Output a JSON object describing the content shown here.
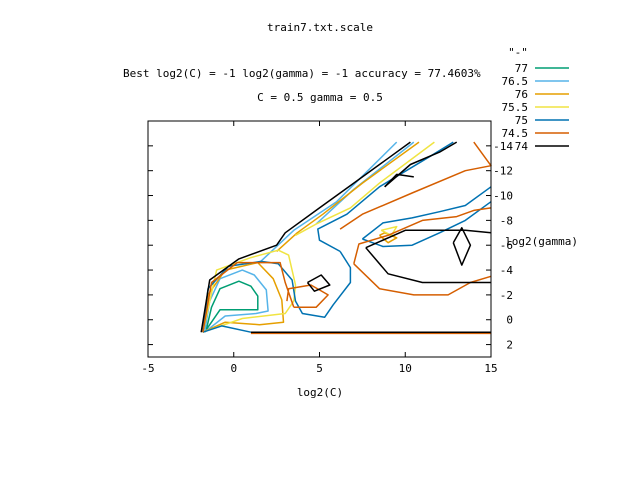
{
  "chart_data": {
    "type": "contour",
    "title": "train7.txt.scale",
    "subtitle_line1": "Best log2(C) = -1  log2(gamma) = -1  accuracy = 77.4603%",
    "subtitle_line2": "C = 0.5  gamma = 0.5",
    "xlabel": "log2(C)",
    "ylabel": "log2(gamma)",
    "xlim": [
      -5,
      15
    ],
    "ylim": [
      -16,
      3
    ],
    "y_reversed": true,
    "x_ticks": [
      -5,
      0,
      5,
      10,
      15
    ],
    "x_tick_labels": [
      "-5",
      "0",
      "5",
      "10",
      "15"
    ],
    "y_ticks": [
      -14,
      -12,
      -10,
      -8,
      -6,
      -4,
      -2,
      0,
      2
    ],
    "y_tick_labels": [
      "-14",
      "-12",
      "-10",
      "-8",
      "-6",
      "-4",
      "-2",
      "0",
      "2"
    ],
    "legend": {
      "title": "\"-\"",
      "placement": "top-right"
    },
    "series": [
      {
        "name": "77",
        "color": "#009e73",
        "paths": [
          [
            [
              -1.6,
              0.8
            ],
            [
              -1.3,
              -1
            ],
            [
              -0.8,
              -2.5
            ],
            [
              0.3,
              -3.1
            ],
            [
              1.0,
              -2.7
            ],
            [
              1.4,
              -1.9
            ],
            [
              1.4,
              -0.8
            ],
            [
              0.4,
              -0.8
            ],
            [
              -0.8,
              -0.8
            ],
            [
              -1.6,
              0.8
            ]
          ]
        ]
      },
      {
        "name": "76.5",
        "color": "#56b4e9",
        "paths": [
          [
            [
              -1.7,
              1.0
            ],
            [
              -1.4,
              -1.5
            ],
            [
              -0.8,
              -3.3
            ],
            [
              0.5,
              -4.0
            ],
            [
              1.2,
              -3.6
            ],
            [
              1.9,
              -2.4
            ],
            [
              2.0,
              -0.7
            ],
            [
              1.3,
              -0.5
            ],
            [
              -0.5,
              -0.3
            ],
            [
              -1.7,
              1.0
            ]
          ],
          [
            [
              1.5,
              -4.6
            ],
            [
              3.5,
              -7.2
            ],
            [
              6.0,
              -9.5
            ],
            [
              9.5,
              -14.3
            ]
          ],
          [
            [
              4.8,
              -7.7
            ],
            [
              7.0,
              -10.5
            ],
            [
              10.5,
              -14.3
            ]
          ]
        ]
      },
      {
        "name": "76",
        "color": "#e69f00",
        "paths": [
          [
            [
              -1.8,
              1.0
            ],
            [
              -1.5,
              -2.0
            ],
            [
              -0.5,
              -4.0
            ],
            [
              1.4,
              -4.6
            ],
            [
              2.3,
              -3.3
            ],
            [
              2.8,
              -1.6
            ],
            [
              2.9,
              0.2
            ],
            [
              1.5,
              0.4
            ],
            [
              -0.5,
              0.2
            ],
            [
              -1.8,
              1.0
            ]
          ],
          [
            [
              2.5,
              -5.5
            ],
            [
              3.7,
              -7.0
            ],
            [
              5.2,
              -8.5
            ],
            [
              7.5,
              -11.0
            ],
            [
              10.8,
              -14.3
            ]
          ],
          [
            [
              8.5,
              -6.8
            ],
            [
              9.0,
              -6.2
            ],
            [
              9.5,
              -6.6
            ],
            [
              8.8,
              -7.0
            ],
            [
              8.5,
              -6.8
            ]
          ]
        ]
      },
      {
        "name": "75.5",
        "color": "#f0e442",
        "paths": [
          [
            [
              -1.8,
              1.0
            ],
            [
              -1.0,
              -4.0
            ],
            [
              1.0,
              -5.0
            ],
            [
              2.6,
              -5.6
            ],
            [
              3.2,
              -5.2
            ],
            [
              3.6,
              -2.8
            ],
            [
              3.5,
              -1.5
            ]
          ],
          [
            [
              3.5,
              -1.5
            ],
            [
              3.0,
              -0.5
            ],
            [
              0.5,
              -0.1
            ],
            [
              -1.8,
              1.0
            ]
          ],
          [
            [
              3.6,
              -6.8
            ],
            [
              4.8,
              -7.7
            ],
            [
              6.8,
              -9.0
            ],
            [
              8.5,
              -11.0
            ],
            [
              11.7,
              -14.3
            ]
          ],
          [
            [
              8.6,
              -7.2
            ],
            [
              9.2,
              -6.8
            ],
            [
              9.5,
              -7.5
            ],
            [
              8.6,
              -7.2
            ]
          ]
        ]
      },
      {
        "name": "75",
        "color": "#0072b2",
        "paths": [
          [
            [
              -1.8,
              1.0
            ],
            [
              -1.5,
              -2.5
            ],
            [
              -0.3,
              -4.3
            ],
            [
              1.6,
              -4.7
            ],
            [
              2.6,
              -4.5
            ],
            [
              3.4,
              -3.2
            ],
            [
              3.6,
              -1.5
            ],
            [
              4.0,
              -0.5
            ],
            [
              5.3,
              -0.2
            ],
            [
              5.8,
              -1.2
            ],
            [
              6.8,
              -3.0
            ],
            [
              6.8,
              -4.2
            ],
            [
              6.2,
              -5.5
            ]
          ],
          [
            [
              6.2,
              -5.5
            ],
            [
              5.0,
              -6.4
            ],
            [
              4.9,
              -7.3
            ],
            [
              6.6,
              -8.5
            ],
            [
              8.5,
              -10.7
            ],
            [
              11.5,
              -13.2
            ],
            [
              12.8,
              -14.3
            ]
          ],
          [
            [
              7.5,
              -6.5
            ],
            [
              8.7,
              -7.8
            ],
            [
              10.4,
              -8.2
            ],
            [
              12.0,
              -8.7
            ],
            [
              13.5,
              -9.2
            ],
            [
              15.0,
              -10.7
            ]
          ],
          [
            [
              7.5,
              -6.5
            ],
            [
              8.7,
              -5.9
            ],
            [
              10.4,
              -6.0
            ],
            [
              12.0,
              -7.0
            ],
            [
              13.5,
              -8.0
            ],
            [
              15.0,
              -9.5
            ]
          ],
          [
            [
              1.0,
              1.0
            ],
            [
              -0.7,
              0.5
            ],
            [
              -1.8,
              1.0
            ]
          ]
        ]
      },
      {
        "name": "74.5",
        "color": "#d55e00",
        "paths": [
          [
            [
              -1.8,
              1.0
            ],
            [
              -1.3,
              -3.0
            ],
            [
              0.2,
              -4.6
            ],
            [
              2.7,
              -4.6
            ],
            [
              3.0,
              -3.0
            ],
            [
              3.5,
              -1.0
            ]
          ],
          [
            [
              3.5,
              -1.0
            ],
            [
              4.8,
              -1.0
            ],
            [
              5.5,
              -2.0
            ],
            [
              4.5,
              -2.8
            ],
            [
              3.2,
              -2.5
            ],
            [
              3.1,
              -1.5
            ]
          ],
          [
            [
              7.0,
              -4.5
            ],
            [
              7.3,
              -6.1
            ],
            [
              9.0,
              -6.8
            ],
            [
              11.0,
              -8.0
            ],
            [
              13.0,
              -8.3
            ],
            [
              14.0,
              -8.8
            ],
            [
              15.0,
              -9.0
            ]
          ],
          [
            [
              7.0,
              -4.5
            ],
            [
              8.5,
              -2.5
            ],
            [
              10.5,
              -2.0
            ],
            [
              12.5,
              -2.0
            ],
            [
              13.8,
              -3.0
            ],
            [
              15.0,
              -3.5
            ]
          ],
          [
            [
              6.2,
              -7.3
            ],
            [
              7.5,
              -8.5
            ],
            [
              10.4,
              -10.2
            ],
            [
              13.5,
              -12.0
            ],
            [
              15.0,
              -12.4
            ],
            [
              14.0,
              -14.3
            ]
          ],
          [
            [
              1.0,
              1.1
            ],
            [
              15.0,
              1.1
            ]
          ]
        ]
      },
      {
        "name": "74",
        "color": "#000000",
        "paths": [
          [
            [
              -1.9,
              1.0
            ],
            [
              -1.4,
              -3.2
            ],
            [
              0.3,
              -4.9
            ],
            [
              2.5,
              -6.0
            ],
            [
              3.0,
              -7.0
            ],
            [
              5.0,
              -9.0
            ],
            [
              7.0,
              -11.0
            ],
            [
              9.0,
              -13.0
            ],
            [
              10.3,
              -14.3
            ]
          ],
          [
            [
              4.3,
              -3.0
            ],
            [
              5.1,
              -3.6
            ],
            [
              5.6,
              -2.8
            ],
            [
              4.7,
              -2.3
            ],
            [
              4.3,
              -3.0
            ]
          ],
          [
            [
              7.7,
              -5.8
            ],
            [
              10.0,
              -7.2
            ],
            [
              13.5,
              -7.2
            ],
            [
              15.0,
              -7.0
            ]
          ],
          [
            [
              7.7,
              -5.8
            ],
            [
              9.0,
              -3.7
            ],
            [
              11.0,
              -3.0
            ],
            [
              13.0,
              -3.0
            ],
            [
              15.0,
              -3.0
            ]
          ],
          [
            [
              12.8,
              -6.2
            ],
            [
              13.3,
              -7.4
            ],
            [
              13.8,
              -6.0
            ],
            [
              13.3,
              -4.4
            ],
            [
              12.8,
              -6.2
            ]
          ],
          [
            [
              8.8,
              -10.7
            ],
            [
              10.3,
              -12.5
            ],
            [
              12.0,
              -13.5
            ],
            [
              13.0,
              -14.3
            ]
          ],
          [
            [
              8.8,
              -10.7
            ],
            [
              9.5,
              -11.7
            ],
            [
              10.5,
              -11.5
            ]
          ],
          [
            [
              1.0,
              1.0
            ],
            [
              15.0,
              1.0
            ]
          ]
        ]
      }
    ]
  }
}
